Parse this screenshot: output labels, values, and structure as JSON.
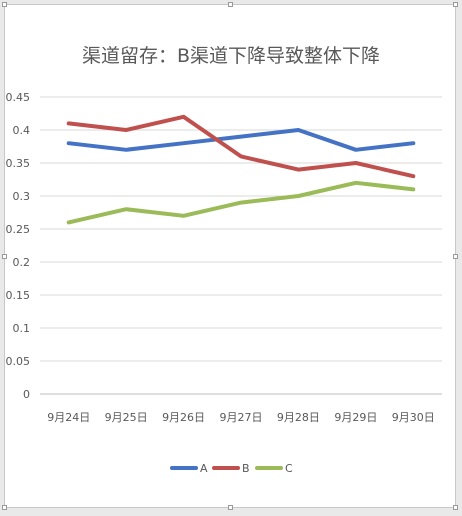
{
  "chart_data": {
    "type": "line",
    "title": "渠道留存：B渠道下降导致整体下降",
    "categories": [
      "9月24日",
      "9月25日",
      "9月26日",
      "9月27日",
      "9月28日",
      "9月29日",
      "9月30日"
    ],
    "series": [
      {
        "name": "A",
        "color": "#4472C4",
        "values": [
          0.38,
          0.37,
          0.38,
          0.39,
          0.4,
          0.37,
          0.38
        ]
      },
      {
        "name": "B",
        "color": "#C0504D",
        "values": [
          0.41,
          0.4,
          0.42,
          0.36,
          0.34,
          0.35,
          0.33
        ]
      },
      {
        "name": "C",
        "color": "#9BBB59",
        "values": [
          0.26,
          0.28,
          0.27,
          0.29,
          0.3,
          0.32,
          0.31
        ]
      }
    ],
    "ylim": [
      0,
      0.45
    ],
    "yticks": [
      "0",
      "0.05",
      "0.1",
      "0.15",
      "0.2",
      "0.25",
      "0.3",
      "0.35",
      "0.4",
      "0.45"
    ],
    "grid": true,
    "legend_position": "bottom",
    "xlabel": "",
    "ylabel": ""
  }
}
